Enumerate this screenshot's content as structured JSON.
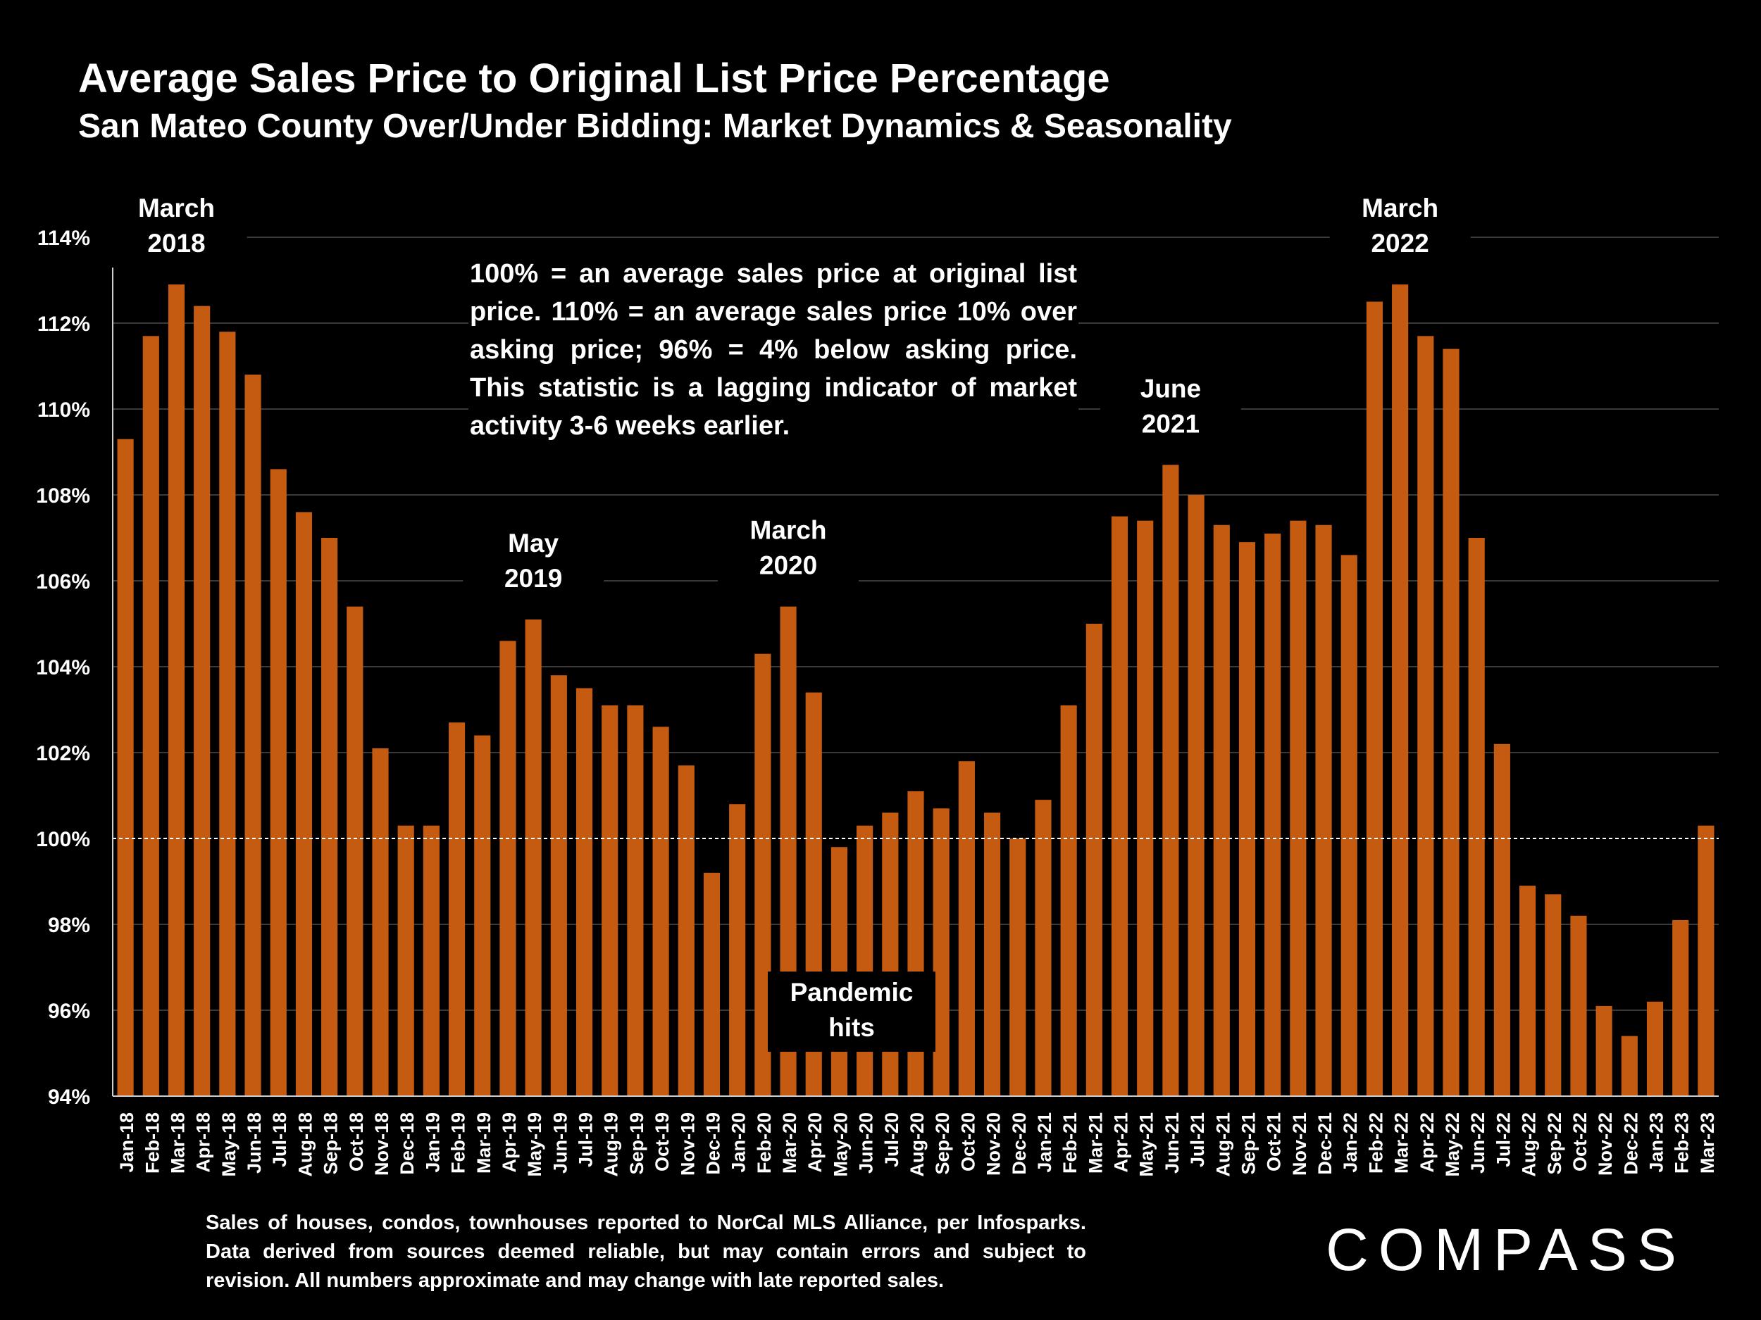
{
  "title": "Average Sales Price to Original List Price Percentage",
  "subtitle": "San Mateo County Over/Under Bidding: Market Dynamics & Seasonality",
  "note": "100% = an average sales price at original list price. 110% = an average sales price 10% over asking price; 96% = 4% below asking price. This statistic is a lagging indicator of market activity 3-6 weeks earlier.",
  "source": "Sales of houses, condos, townhouses reported to NorCal MLS Alliance, per Infosparks. Data derived from sources deemed reliable, but may contain errors and subject to revision. All numbers approximate and may change with late reported sales.",
  "logo_text": "COMPASS",
  "colors": {
    "bar": "#C55A11",
    "background": "#000000",
    "gridline": "#3a3a3a",
    "reference_line": "#ffffff",
    "text": "#ffffff"
  },
  "chart_data": {
    "type": "bar",
    "categories": [
      "Jan-18",
      "Feb-18",
      "Mar-18",
      "Apr-18",
      "May-18",
      "Jun-18",
      "Jul-18",
      "Aug-18",
      "Sep-18",
      "Oct-18",
      "Nov-18",
      "Dec-18",
      "Jan-19",
      "Feb-19",
      "Mar-19",
      "Apr-19",
      "May-19",
      "Jun-19",
      "Jul-19",
      "Aug-19",
      "Sep-19",
      "Oct-19",
      "Nov-19",
      "Dec-19",
      "Jan-20",
      "Feb-20",
      "Mar-20",
      "Apr-20",
      "May-20",
      "Jun-20",
      "Jul-20",
      "Aug-20",
      "Sep-20",
      "Oct-20",
      "Nov-20",
      "Dec-20",
      "Jan-21",
      "Feb-21",
      "Mar-21",
      "Apr-21",
      "May-21",
      "Jun-21",
      "Jul-21",
      "Aug-21",
      "Sep-21",
      "Oct-21",
      "Nov-21",
      "Dec-21",
      "Jan-22",
      "Feb-22",
      "Mar-22",
      "Apr-22",
      "May-22",
      "Jun-22",
      "Jul-22",
      "Aug-22",
      "Sep-22",
      "Oct-22",
      "Nov-22",
      "Dec-22",
      "Jan-23",
      "Feb-23",
      "Mar-23"
    ],
    "values": [
      109.3,
      111.7,
      112.9,
      112.4,
      111.8,
      110.8,
      108.6,
      107.6,
      107.0,
      105.4,
      102.1,
      100.3,
      100.3,
      102.7,
      102.4,
      104.6,
      105.1,
      103.8,
      103.5,
      103.1,
      103.1,
      102.6,
      101.7,
      99.2,
      100.8,
      104.3,
      105.4,
      103.4,
      99.8,
      100.3,
      100.6,
      101.1,
      100.7,
      101.8,
      100.6,
      100.0,
      100.9,
      103.1,
      105.0,
      107.5,
      107.4,
      108.7,
      108.0,
      107.3,
      106.9,
      107.1,
      107.4,
      107.3,
      106.6,
      112.5,
      112.9,
      111.7,
      111.4,
      107.0,
      102.2,
      98.9,
      98.7,
      98.2,
      96.1,
      95.4,
      96.2,
      98.1,
      100.3
    ],
    "ylim": [
      94,
      114
    ],
    "yticks": [
      94,
      96,
      98,
      100,
      102,
      104,
      106,
      108,
      110,
      112,
      114
    ],
    "ytick_labels": [
      "94%",
      "96%",
      "98%",
      "100%",
      "102%",
      "104%",
      "106%",
      "108%",
      "110%",
      "112%",
      "114%"
    ],
    "reference_line": 100,
    "grid": true,
    "annotations": [
      {
        "category": "Mar-18",
        "lines": [
          "March",
          "2018"
        ]
      },
      {
        "category": "May-19",
        "lines": [
          "May",
          "2019"
        ]
      },
      {
        "category": "Mar-20",
        "lines": [
          "March",
          "2020"
        ]
      },
      {
        "category": "Jun-21",
        "lines": [
          "June",
          "2021"
        ]
      },
      {
        "category": "Mar-22",
        "lines": [
          "March",
          "2022"
        ]
      },
      {
        "category": "Apr-20",
        "lines": [
          "Pandemic",
          "hits"
        ]
      }
    ]
  }
}
